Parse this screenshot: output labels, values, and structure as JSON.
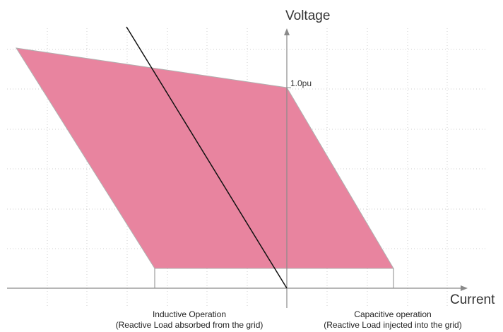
{
  "axes": {
    "y_title": "Voltage",
    "x_title": "Current"
  },
  "reference_label": "1.0pu",
  "captions": {
    "inductive": {
      "title": "Inductive Operation",
      "subtitle": "(Reactive Load absorbed from the grid)"
    },
    "capacitive": {
      "title": "Capacitive operation",
      "subtitle": "(Reactive Load injected into the grid)"
    }
  },
  "colors": {
    "operating_region": "#e8849f",
    "region_edge": "#b0b0b0",
    "axis": "#8a8a8a",
    "load_line": "#111111",
    "grid": "#cfcfcf"
  }
}
